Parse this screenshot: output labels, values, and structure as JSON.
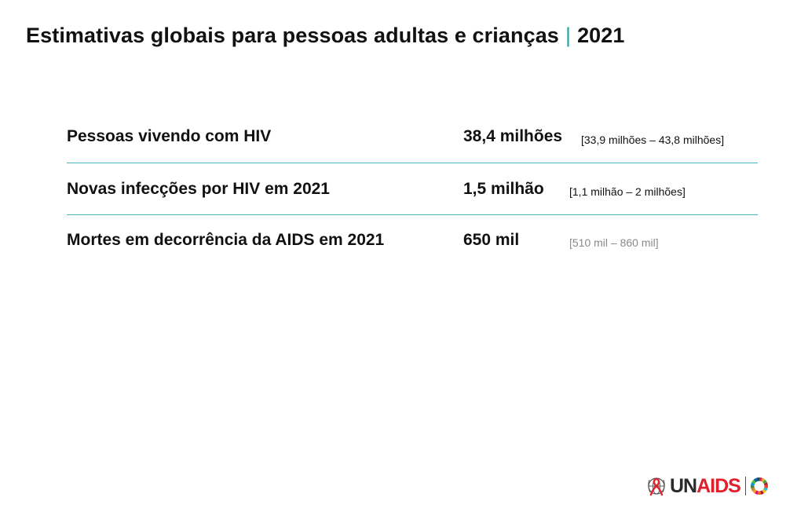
{
  "title": {
    "main": "Estimativas globais para pessoas adultas e crianças",
    "separator": "|",
    "year": "2021"
  },
  "rows": [
    {
      "label": "Pessoas vivendo com HIV",
      "value": "38,4 milhões",
      "range": "[33,9 milhões – 43,8 milhões]"
    },
    {
      "label": "Novas infecções por HIV em 2021",
      "value": "1,5 milhão",
      "range": "[1,1 milhão – 2 milhões]"
    },
    {
      "label": "Mortes em decorrência da AIDS em 2021",
      "value": "650 mil",
      "range": "[510 mil – 860 mil]"
    }
  ],
  "logo": {
    "brand_prefix": "UN",
    "brand_accent": "AIDS",
    "icons": [
      "ribbon-globe-icon",
      "sdg-wheel-icon"
    ]
  },
  "colors": {
    "divider": "#4fb7bb",
    "title_separator": "#26a4a8",
    "brand_red": "#e0202d",
    "muted_range": "#8a8a8a"
  }
}
